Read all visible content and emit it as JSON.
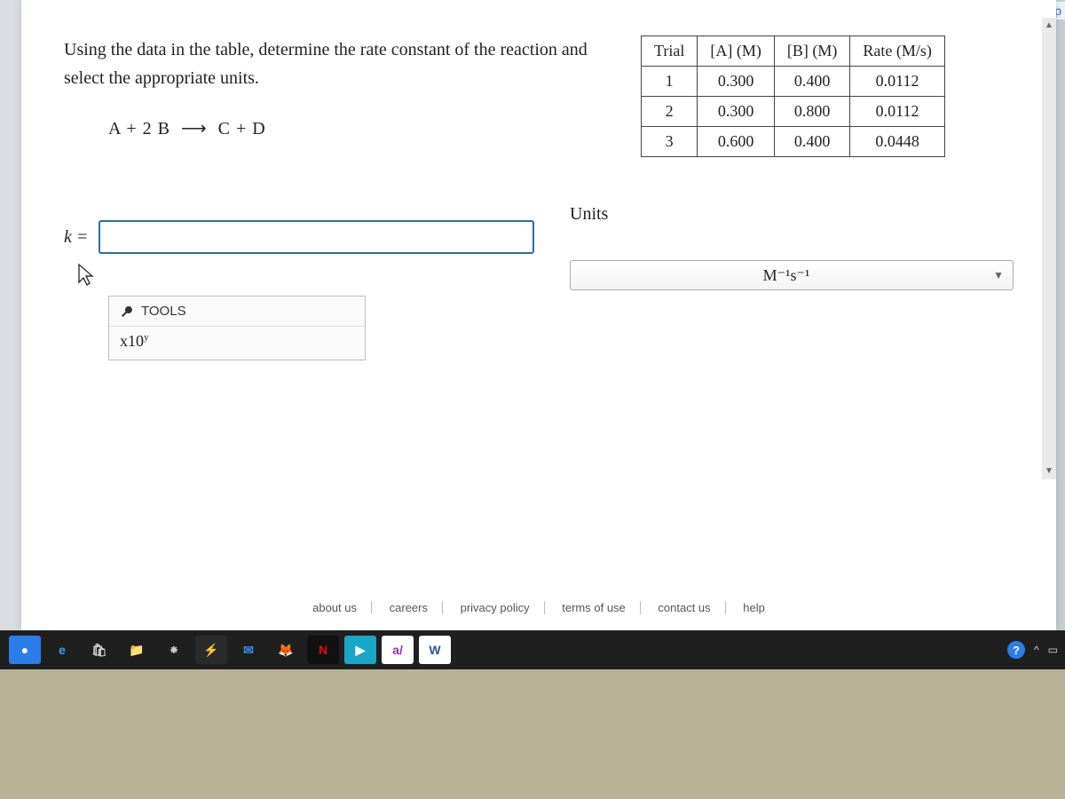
{
  "header": {
    "attempt": "Attemp"
  },
  "question": {
    "prompt": "Using the data in the table, determine the rate constant of the reaction and select the appropriate units.",
    "equation_left": "A + 2 B",
    "equation_right": "C + D"
  },
  "table": {
    "columns": [
      "Trial",
      "[A] (M)",
      "[B] (M)",
      "Rate (M/s)"
    ],
    "rows": [
      [
        "1",
        "0.300",
        "0.400",
        "0.0112"
      ],
      [
        "2",
        "0.300",
        "0.800",
        "0.0112"
      ],
      [
        "3",
        "0.600",
        "0.400",
        "0.0448"
      ]
    ]
  },
  "answer": {
    "k_label": "k =",
    "k_value": "",
    "tools_label": "TOOLS",
    "sci_notation": "x10",
    "sci_exp": "y"
  },
  "units": {
    "label": "Units",
    "selected": "M⁻¹s⁻¹"
  },
  "footer": {
    "links": [
      "about us",
      "careers",
      "privacy policy",
      "terms of use",
      "contact us",
      "help"
    ]
  },
  "taskbar": {
    "apps": [
      {
        "name": "camera",
        "bg": "#2b7de9",
        "glyph": "●"
      },
      {
        "name": "edge",
        "bg": "transparent",
        "glyph": "e",
        "color": "#39a0ed"
      },
      {
        "name": "store",
        "bg": "transparent",
        "glyph": "🛍",
        "color": "#ccc"
      },
      {
        "name": "files",
        "bg": "transparent",
        "glyph": "📁",
        "color": "#f5c542"
      },
      {
        "name": "slack",
        "bg": "transparent",
        "glyph": "⁕",
        "color": "#ccc"
      },
      {
        "name": "bolt",
        "bg": "#2a2a2a",
        "glyph": "⚡",
        "color": "#ffd24d"
      },
      {
        "name": "mail",
        "bg": "transparent",
        "glyph": "✉",
        "color": "#3b8de8"
      },
      {
        "name": "firefox",
        "bg": "transparent",
        "glyph": "🦊",
        "color": "#ff8c3b"
      },
      {
        "name": "netflix",
        "bg": "#111",
        "glyph": "N",
        "color": "#e50914"
      },
      {
        "name": "prime",
        "bg": "#1aa7c7",
        "glyph": "▶",
        "color": "#fff"
      },
      {
        "name": "avid",
        "bg": "#fff",
        "glyph": "a/",
        "color": "#8e2fbf"
      },
      {
        "name": "word",
        "bg": "#fff",
        "glyph": "W",
        "color": "#2b579a"
      }
    ]
  },
  "colors": {
    "page_bg": "#c5cdd4",
    "card_bg": "#ffffff",
    "input_border": "#2b6cb0",
    "taskbar_bg": "#1f1f1f"
  }
}
